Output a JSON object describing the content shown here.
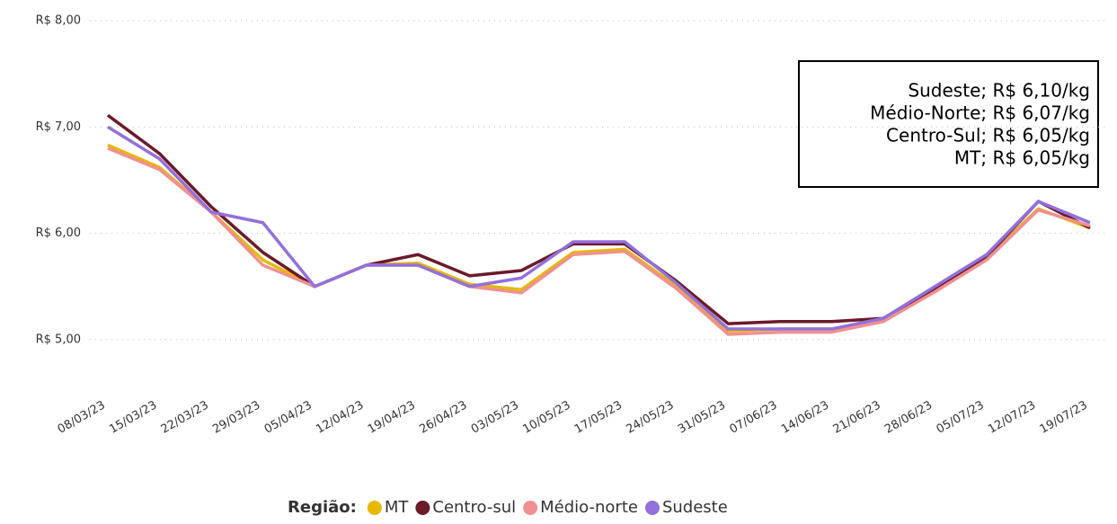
{
  "chart_data": {
    "type": "line",
    "categories": [
      "08/03/23",
      "15/03/23",
      "22/03/23",
      "29/03/23",
      "05/04/23",
      "12/04/23",
      "19/04/23",
      "26/04/23",
      "03/05/23",
      "10/05/23",
      "17/05/23",
      "24/05/23",
      "31/05/23",
      "07/06/23",
      "14/06/23",
      "21/06/23",
      "28/06/23",
      "05/07/23",
      "12/07/23",
      "19/07/23"
    ],
    "series": [
      {
        "name": "MT",
        "color": "#e6b800",
        "values": [
          6.83,
          6.62,
          6.2,
          5.75,
          5.5,
          5.7,
          5.72,
          5.52,
          5.47,
          5.82,
          5.85,
          5.5,
          5.08,
          5.1,
          5.1,
          5.18,
          5.45,
          5.77,
          6.23,
          6.05
        ]
      },
      {
        "name": "Centro-sul",
        "color": "#6b1a2a",
        "values": [
          7.11,
          6.75,
          6.25,
          5.82,
          5.5,
          5.7,
          5.8,
          5.6,
          5.65,
          5.9,
          5.9,
          5.55,
          5.15,
          5.17,
          5.17,
          5.2,
          5.47,
          5.78,
          6.3,
          6.05
        ]
      },
      {
        "name": "Médio-norte",
        "color": "#f09090",
        "values": [
          6.8,
          6.6,
          6.2,
          5.7,
          5.5,
          5.7,
          5.7,
          5.5,
          5.44,
          5.8,
          5.83,
          5.48,
          5.05,
          5.07,
          5.07,
          5.17,
          5.45,
          5.75,
          6.22,
          6.07
        ]
      },
      {
        "name": "Sudeste",
        "color": "#9370db",
        "values": [
          7.0,
          6.7,
          6.2,
          6.1,
          5.5,
          5.7,
          5.7,
          5.5,
          5.58,
          5.92,
          5.92,
          5.53,
          5.1,
          5.1,
          5.1,
          5.2,
          5.5,
          5.8,
          6.3,
          6.1
        ]
      }
    ],
    "ylim": [
      4.5,
      8.0
    ],
    "yticks": [
      {
        "value": 5,
        "label": "R$ 5,00"
      },
      {
        "value": 6,
        "label": "R$ 6,00"
      },
      {
        "value": 7,
        "label": "R$ 7,00"
      },
      {
        "value": 8,
        "label": "R$ 8,00"
      }
    ],
    "grid": true,
    "legend_title": "Região:",
    "annotation": [
      "Sudeste; R$ 6,10/kg",
      "Médio-Norte; R$ 6,07/kg",
      "Centro-Sul; R$ 6,05/kg",
      "MT; R$ 6,05/kg"
    ]
  }
}
